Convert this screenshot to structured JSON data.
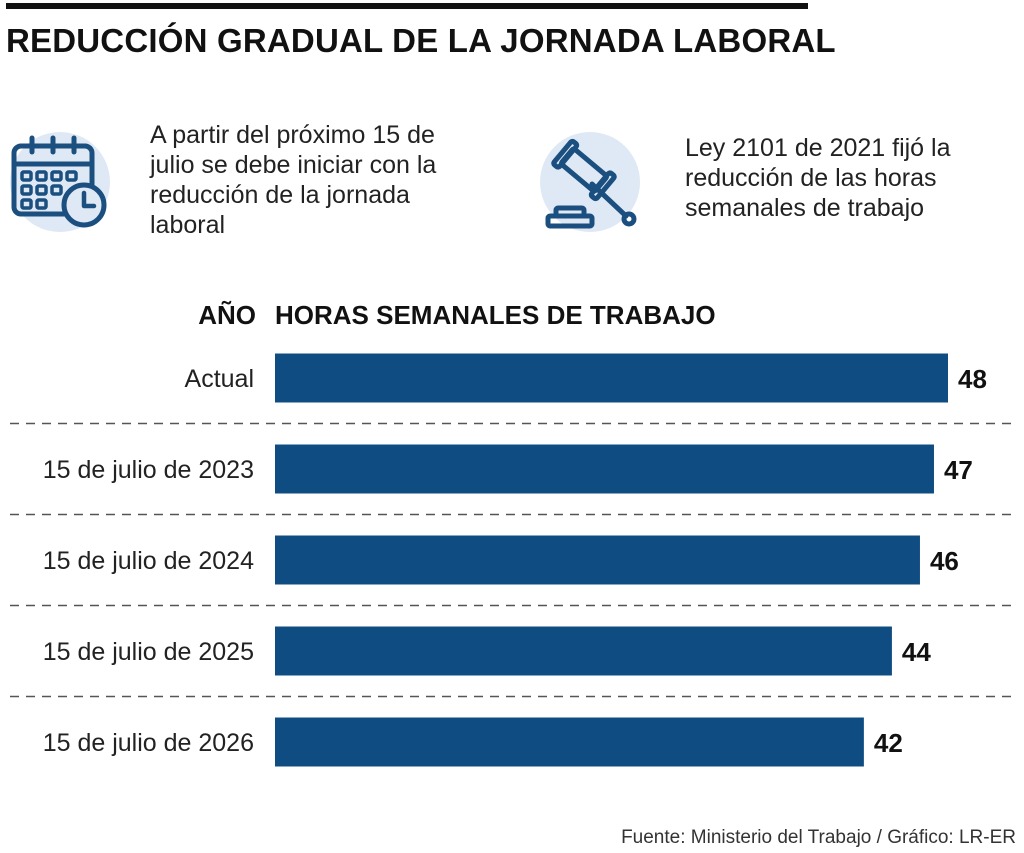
{
  "header": {
    "title": "REDUCCIÓN GRADUAL DE LA JORNADA LABORAL"
  },
  "info": {
    "calendar": {
      "icon": "calendar-clock-icon",
      "lines": [
        "A partir del próximo 15 de",
        "julio se debe iniciar con la",
        "reducción de la jornada",
        "laboral"
      ]
    },
    "law": {
      "icon": "gavel-icon",
      "lines": [
        "Ley 2101 de 2021 fijó la",
        "reducción de las horas",
        "semanales de trabajo"
      ]
    }
  },
  "chart_data": {
    "type": "bar",
    "orientation": "horizontal",
    "category_header": "AÑO",
    "value_header": "HORAS SEMANALES DE TRABAJO",
    "categories": [
      "Actual",
      "15 de julio de 2023",
      "15 de julio de 2024",
      "15 de julio de 2025",
      "15 de julio de 2026"
    ],
    "values": [
      48,
      47,
      46,
      44,
      42
    ],
    "value_labels": [
      "48",
      "47",
      "46",
      "44",
      "42"
    ],
    "xlim": [
      0,
      48
    ],
    "grid": false,
    "row_separators": "dashed",
    "bar_color": "#0f4c81"
  },
  "colors": {
    "bar": "#0f4c81",
    "icon_stroke": "#1b4f7f",
    "icon_background": "#dfe9f5"
  },
  "footer": {
    "source": "Fuente: Ministerio del Trabajo / Gráfico: LR-ER"
  }
}
